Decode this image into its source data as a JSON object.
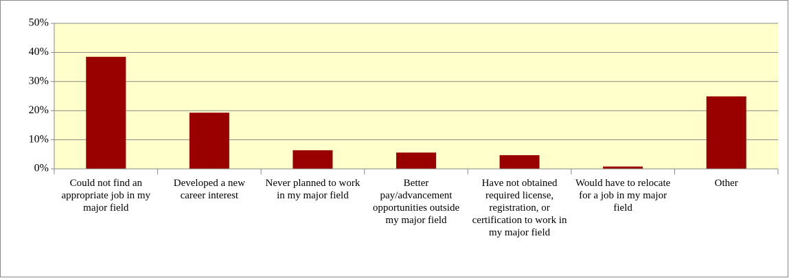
{
  "chart_data": {
    "type": "bar",
    "categories": [
      "Could not find an appropriate job in my major field",
      "Developed a new career interest",
      "Never planned to work in my major field",
      "Better pay/advancement opportunities outside my major field",
      "Have not obtained required license, registration, or certification to work in my major field",
      "Would have to relocate for a job in my major field",
      "Other"
    ],
    "values": [
      38.5,
      19.3,
      6.4,
      5.6,
      4.7,
      0.8,
      24.9
    ],
    "color": "#990000",
    "ylim": [
      0,
      50
    ],
    "yticks": [
      {
        "value": 0,
        "label": "0%"
      },
      {
        "value": 10,
        "label": "10%"
      },
      {
        "value": 20,
        "label": "20%"
      },
      {
        "value": 30,
        "label": "30%"
      },
      {
        "value": 40,
        "label": "40%"
      },
      {
        "value": 50,
        "label": "50%"
      }
    ],
    "grid": true
  }
}
